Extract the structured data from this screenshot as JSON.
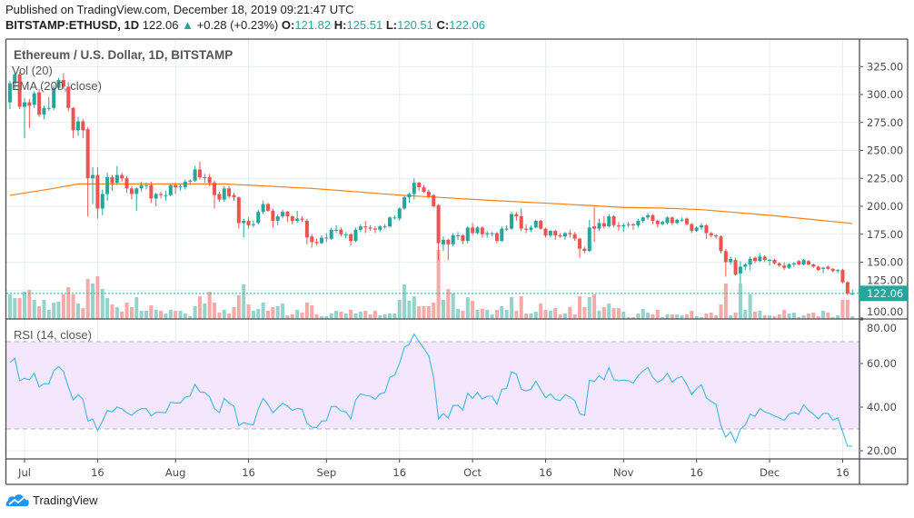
{
  "header": {
    "published": "Published on TradingView.com, December 18, 2019 09:21:47 UTC",
    "symbol": "BITSTAMP:ETHUSD, 1D",
    "last": "122.06",
    "change": "+0.28 (+0.23%)",
    "o_label": "O:",
    "o": "121.82",
    "h_label": "H:",
    "h": "125.51",
    "l_label": "L:",
    "l": "120.51",
    "c_label": "C:",
    "c": "122.06",
    "change_icon": "triangle-up"
  },
  "footer": {
    "brand": "TradingView",
    "logo_icon": "tradingview-cloud-logo"
  },
  "colors": {
    "up": "#26a69a",
    "down": "#ef5350",
    "vol_up": "#93d3cc",
    "vol_down": "#f7a9a7",
    "ema": "#ff7f0e",
    "rsi": "#3db8e6",
    "rsi_band": "#f3e6fd",
    "grid": "#e6edf3",
    "border": "#4a4a55"
  },
  "chart_data": {
    "type": "candlestick",
    "title": "Ethereum / U.S. Dollar, 1D, BITSTAMP",
    "indicators": {
      "volume": "Vol (20)",
      "ema": "EMA (200, close)",
      "rsi": "RSI (14, close)"
    },
    "price_axis": {
      "ylim": [
        100,
        345
      ],
      "ticks": [
        "325.00",
        "300.00",
        "275.00",
        "250.00",
        "225.00",
        "200.00",
        "175.00",
        "150.00",
        "125.00",
        "100.00"
      ],
      "last_price_label": "122.06",
      "last_price": 122.06
    },
    "rsi_axis": {
      "ylim": [
        17,
        80
      ],
      "ticks": [
        "80.00",
        "60.00",
        "40.00",
        "20.00"
      ],
      "band": [
        30,
        70
      ]
    },
    "time_axis": [
      {
        "label": "Jul",
        "date": "2019-07-01"
      },
      {
        "label": "16",
        "date": "2019-07-16"
      },
      {
        "label": "Aug",
        "date": "2019-08-01"
      },
      {
        "label": "16",
        "date": "2019-08-16"
      },
      {
        "label": "Sep",
        "date": "2019-09-01"
      },
      {
        "label": "16",
        "date": "2019-09-16"
      },
      {
        "label": "Oct",
        "date": "2019-10-01"
      },
      {
        "label": "16",
        "date": "2019-10-16"
      },
      {
        "label": "Nov",
        "date": "2019-11-01"
      },
      {
        "label": "16",
        "date": "2019-11-16"
      },
      {
        "label": "Dec",
        "date": "2019-12-01"
      },
      {
        "label": "16",
        "date": "2019-12-16"
      }
    ],
    "candle_fields": [
      "date",
      "open",
      "high",
      "low",
      "close",
      "volume_relative"
    ],
    "first_date": "2019-06-28",
    "candles": [
      [
        293,
        312,
        287,
        310,
        27
      ],
      [
        310,
        320,
        305,
        318,
        23
      ],
      [
        318,
        320,
        287,
        289,
        23
      ],
      [
        289,
        297,
        261,
        293,
        30
      ],
      [
        293,
        296,
        270,
        290,
        32
      ],
      [
        291,
        303,
        288,
        301,
        21
      ],
      [
        302,
        305,
        280,
        282,
        14
      ],
      [
        282,
        290,
        278,
        288,
        21
      ],
      [
        288,
        298,
        285,
        288,
        10
      ],
      [
        288,
        308,
        286,
        306,
        18
      ],
      [
        306,
        315,
        304,
        313,
        19
      ],
      [
        313,
        319,
        305,
        307,
        27
      ],
      [
        307,
        311,
        285,
        288,
        35
      ],
      [
        288,
        289,
        261,
        268,
        27
      ],
      [
        268,
        280,
        263,
        276,
        17
      ],
      [
        276,
        278,
        261,
        268,
        12
      ],
      [
        269,
        271,
        191,
        225,
        44
      ],
      [
        225,
        235,
        202,
        228,
        39
      ],
      [
        228,
        235,
        189,
        198,
        47
      ],
      [
        198,
        215,
        192,
        211,
        33
      ],
      [
        211,
        230,
        205,
        226,
        23
      ],
      [
        226,
        228,
        214,
        221,
        16
      ],
      [
        221,
        236,
        219,
        228,
        13
      ],
      [
        228,
        230,
        222,
        225,
        8
      ],
      [
        225,
        227,
        212,
        216,
        18
      ],
      [
        216,
        218,
        206,
        211,
        13
      ],
      [
        211,
        217,
        196,
        216,
        24
      ],
      [
        216,
        222,
        213,
        219,
        9
      ],
      [
        219,
        221,
        215,
        219,
        9
      ],
      [
        219,
        222,
        203,
        207,
        15
      ],
      [
        207,
        212,
        200,
        211,
        10
      ],
      [
        211,
        213,
        207,
        210,
        9
      ],
      [
        210,
        214,
        205,
        210,
        6
      ],
      [
        210,
        220,
        209,
        219,
        10
      ],
      [
        219,
        221,
        211,
        217,
        9
      ],
      [
        218,
        220,
        214,
        218,
        9
      ],
      [
        217,
        224,
        215,
        222,
        6
      ],
      [
        222,
        224,
        219,
        223,
        3
      ],
      [
        223,
        236,
        222,
        233,
        14
      ],
      [
        233,
        240,
        224,
        226,
        25
      ],
      [
        226,
        229,
        221,
        226,
        17
      ],
      [
        226,
        229,
        218,
        221,
        30
      ],
      [
        221,
        223,
        198,
        210,
        18
      ],
      [
        211,
        213,
        204,
        206,
        7
      ],
      [
        206,
        218,
        204,
        216,
        10
      ],
      [
        216,
        218,
        207,
        209,
        6
      ],
      [
        210,
        212,
        205,
        208,
        13
      ],
      [
        208,
        209,
        180,
        185,
        26
      ],
      [
        185,
        189,
        172,
        187,
        38
      ],
      [
        187,
        190,
        180,
        183,
        16
      ],
      [
        184,
        187,
        181,
        184,
        9
      ],
      [
        185,
        197,
        184,
        195,
        11
      ],
      [
        195,
        205,
        193,
        202,
        18
      ],
      [
        202,
        203,
        195,
        196,
        9
      ],
      [
        196,
        198,
        181,
        187,
        13
      ],
      [
        187,
        193,
        183,
        191,
        14
      ],
      [
        191,
        197,
        189,
        195,
        17
      ],
      [
        195,
        196,
        186,
        191,
        4
      ],
      [
        191,
        192,
        184,
        187,
        5
      ],
      [
        187,
        196,
        185,
        189,
        10
      ],
      [
        189,
        191,
        186,
        188,
        7
      ],
      [
        187,
        189,
        166,
        172,
        18
      ],
      [
        173,
        175,
        163,
        168,
        15
      ],
      [
        168,
        171,
        165,
        167,
        5
      ],
      [
        167,
        174,
        166,
        172,
        3
      ],
      [
        172,
        176,
        168,
        172,
        3
      ],
      [
        171,
        181,
        170,
        179,
        6
      ],
      [
        179,
        183,
        176,
        179,
        9
      ],
      [
        179,
        181,
        173,
        175,
        8
      ],
      [
        175,
        177,
        171,
        175,
        6
      ],
      [
        175,
        176,
        165,
        169,
        10
      ],
      [
        169,
        181,
        168,
        179,
        6
      ],
      [
        179,
        184,
        177,
        182,
        8
      ],
      [
        182,
        187,
        176,
        181,
        9
      ],
      [
        181,
        183,
        178,
        180,
        5
      ],
      [
        180,
        182,
        176,
        179,
        9
      ],
      [
        179,
        183,
        177,
        182,
        4
      ],
      [
        182,
        184,
        180,
        182,
        5
      ],
      [
        182,
        191,
        181,
        190,
        6
      ],
      [
        190,
        192,
        188,
        190,
        6
      ],
      [
        189,
        199,
        187,
        198,
        21
      ],
      [
        198,
        210,
        197,
        208,
        38
      ],
      [
        208,
        212,
        203,
        211,
        20
      ],
      [
        211,
        225,
        206,
        221,
        25
      ],
      [
        221,
        222,
        214,
        217,
        14
      ],
      [
        217,
        219,
        212,
        213,
        14
      ],
      [
        213,
        215,
        207,
        209,
        14
      ],
      [
        210,
        211,
        199,
        200,
        18
      ],
      [
        201,
        202,
        152,
        167,
        76
      ],
      [
        166,
        173,
        160,
        170,
        21
      ],
      [
        170,
        171,
        152,
        166,
        33
      ],
      [
        166,
        176,
        164,
        174,
        28
      ],
      [
        174,
        177,
        170,
        174,
        11
      ],
      [
        174,
        175,
        166,
        169,
        9
      ],
      [
        169,
        182,
        167,
        181,
        24
      ],
      [
        181,
        185,
        174,
        176,
        20
      ],
      [
        176,
        182,
        175,
        181,
        10
      ],
      [
        181,
        182,
        172,
        175,
        11
      ],
      [
        175,
        178,
        172,
        176,
        10
      ],
      [
        176,
        177,
        173,
        176,
        5
      ],
      [
        176,
        177,
        167,
        169,
        10
      ],
      [
        169,
        182,
        168,
        180,
        14
      ],
      [
        180,
        183,
        178,
        180,
        10
      ],
      [
        180,
        195,
        179,
        193,
        24
      ],
      [
        193,
        195,
        187,
        191,
        9
      ],
      [
        191,
        198,
        178,
        180,
        25
      ],
      [
        180,
        184,
        176,
        179,
        6
      ],
      [
        179,
        183,
        177,
        181,
        6
      ],
      [
        181,
        188,
        180,
        187,
        8
      ],
      [
        187,
        188,
        179,
        180,
        17
      ],
      [
        180,
        181,
        172,
        174,
        10
      ],
      [
        174,
        179,
        172,
        178,
        9
      ],
      [
        178,
        179,
        170,
        174,
        12
      ],
      [
        174,
        176,
        172,
        173,
        5
      ],
      [
        173,
        177,
        170,
        176,
        6
      ],
      [
        176,
        179,
        172,
        175,
        13
      ],
      [
        175,
        177,
        169,
        171,
        5
      ],
      [
        171,
        172,
        154,
        162,
        25
      ],
      [
        162,
        164,
        158,
        160,
        13
      ],
      [
        160,
        188,
        159,
        181,
        24
      ],
      [
        182,
        199,
        168,
        180,
        27
      ],
      [
        180,
        189,
        178,
        185,
        9
      ],
      [
        185,
        191,
        180,
        182,
        13
      ],
      [
        182,
        193,
        181,
        191,
        17
      ],
      [
        191,
        192,
        181,
        183,
        12
      ],
      [
        183,
        186,
        178,
        182,
        12
      ],
      [
        182,
        185,
        177,
        183,
        8
      ],
      [
        184,
        186,
        181,
        184,
        2
      ],
      [
        184,
        185,
        179,
        183,
        2
      ],
      [
        183,
        189,
        181,
        187,
        6
      ],
      [
        187,
        191,
        185,
        190,
        11
      ],
      [
        190,
        194,
        188,
        192,
        7
      ],
      [
        192,
        193,
        184,
        187,
        5
      ],
      [
        187,
        188,
        181,
        184,
        10
      ],
      [
        184,
        187,
        183,
        186,
        2
      ],
      [
        185,
        191,
        184,
        190,
        5
      ],
      [
        190,
        191,
        183,
        185,
        5
      ],
      [
        185,
        189,
        184,
        188,
        5
      ],
      [
        188,
        190,
        186,
        188,
        4
      ],
      [
        189,
        190,
        183,
        184,
        5
      ],
      [
        184,
        185,
        176,
        178,
        9
      ],
      [
        178,
        182,
        177,
        181,
        3
      ],
      [
        181,
        185,
        179,
        183,
        2
      ],
      [
        183,
        184,
        171,
        176,
        6
      ],
      [
        176,
        177,
        172,
        174,
        7
      ],
      [
        174,
        175,
        171,
        173,
        4
      ],
      [
        173,
        174,
        158,
        160,
        16
      ],
      [
        160,
        162,
        137,
        150,
        39
      ],
      [
        150,
        155,
        148,
        153,
        4
      ],
      [
        152,
        154,
        138,
        139,
        7
      ],
      [
        140,
        151,
        131,
        146,
        39
      ],
      [
        146,
        149,
        143,
        148,
        10
      ],
      [
        148,
        155,
        143,
        153,
        27
      ],
      [
        154,
        155,
        149,
        151,
        8
      ],
      [
        151,
        158,
        150,
        155,
        9
      ],
      [
        155,
        156,
        150,
        152,
        4
      ],
      [
        152,
        153,
        147,
        152,
        4
      ],
      [
        152,
        153,
        148,
        149,
        3
      ],
      [
        149,
        150,
        146,
        147,
        5
      ],
      [
        147,
        150,
        143,
        145,
        10
      ],
      [
        145,
        149,
        144,
        148,
        6
      ],
      [
        148,
        150,
        146,
        149,
        7
      ],
      [
        151,
        152,
        147,
        148,
        2
      ],
      [
        148,
        153,
        147,
        152,
        4
      ],
      [
        151,
        152,
        147,
        148,
        6
      ],
      [
        148,
        149,
        145,
        146,
        7
      ],
      [
        146,
        147,
        142,
        143,
        3
      ],
      [
        144,
        146,
        140,
        145,
        9
      ],
      [
        146,
        147,
        143,
        144,
        7
      ],
      [
        144,
        145,
        141,
        142,
        2
      ],
      [
        142,
        144,
        140,
        143,
        4
      ],
      [
        143,
        144,
        131,
        132,
        21
      ],
      [
        132,
        133,
        120.5,
        122,
        21
      ],
      [
        121.82,
        125.51,
        120.51,
        122.06,
        3
      ]
    ],
    "ema_200": [
      {
        "date": "2019-06-28",
        "value": 209.8
      },
      {
        "date": "2019-07-07",
        "value": 216
      },
      {
        "date": "2019-07-12",
        "value": 220
      },
      {
        "date": "2019-08-11",
        "value": 220
      },
      {
        "date": "2019-08-29",
        "value": 216
      },
      {
        "date": "2019-09-16",
        "value": 210
      },
      {
        "date": "2019-10-06",
        "value": 205
      },
      {
        "date": "2019-10-18",
        "value": 202.4
      },
      {
        "date": "2019-11-01",
        "value": 199
      },
      {
        "date": "2019-11-09",
        "value": 198.4
      },
      {
        "date": "2019-11-17",
        "value": 197
      },
      {
        "date": "2019-12-01",
        "value": 192
      },
      {
        "date": "2019-12-18",
        "value": 184.6
      }
    ],
    "rsi_14": [
      60.4,
      62.4,
      52.1,
      53.2,
      52.6,
      55.5,
      49.3,
      50.7,
      50.7,
      56.8,
      58.6,
      56.3,
      49.3,
      43.3,
      45.7,
      43.6,
      33.6,
      34.6,
      29.3,
      33.6,
      38.5,
      37.8,
      40.1,
      39.2,
      37.4,
      36.2,
      38.2,
      39.3,
      39.3,
      36.0,
      37.6,
      37.6,
      37.5,
      42.2,
      41.9,
      41.9,
      44.6,
      45.1,
      50.5,
      46.9,
      46.8,
      44.7,
      39.4,
      37.5,
      44.0,
      41.8,
      40.5,
      31.5,
      32.9,
      32.2,
      31.9,
      39.2,
      44.0,
      41.2,
      37.4,
      39.6,
      41.8,
      40.4,
      38.5,
      39.4,
      39.0,
      32.6,
      30.8,
      30.7,
      33.6,
      33.8,
      40.3,
      40.3,
      38.2,
      37.8,
      34.6,
      43.3,
      46.1,
      45.4,
      45.0,
      43.6,
      46.1,
      46.7,
      53.7,
      54.7,
      60.0,
      67.4,
      68.8,
      73.5,
      70.1,
      67.0,
      63.5,
      53.8,
      34.6,
      37.1,
      35.0,
      40.8,
      40.8,
      38.7,
      46.4,
      44.0,
      46.8,
      43.7,
      45.0,
      45.0,
      41.3,
      48.2,
      48.6,
      56.2,
      55.1,
      48.2,
      47.4,
      48.2,
      51.9,
      47.9,
      44.3,
      46.1,
      43.6,
      42.9,
      45.7,
      44.7,
      42.9,
      37.1,
      36.2,
      52.4,
      51.7,
      54.4,
      52.6,
      58.2,
      52.6,
      52.1,
      52.4,
      52.1,
      51.0,
      54.4,
      56.5,
      58.2,
      53.7,
      51.4,
      52.6,
      55.6,
      51.4,
      53.3,
      54.0,
      50.3,
      45.8,
      48.5,
      50.3,
      44.3,
      42.6,
      41.3,
      31.5,
      26.3,
      28.7,
      23.9,
      29.9,
      31.8,
      36.8,
      35.7,
      39.4,
      37.8,
      37.1,
      36.0,
      35.0,
      33.9,
      36.8,
      37.5,
      36.8,
      41.1,
      38.5,
      36.8,
      34.6,
      37.1,
      37.1,
      34.0,
      35.1,
      28.7,
      22.1,
      22.1
    ]
  }
}
